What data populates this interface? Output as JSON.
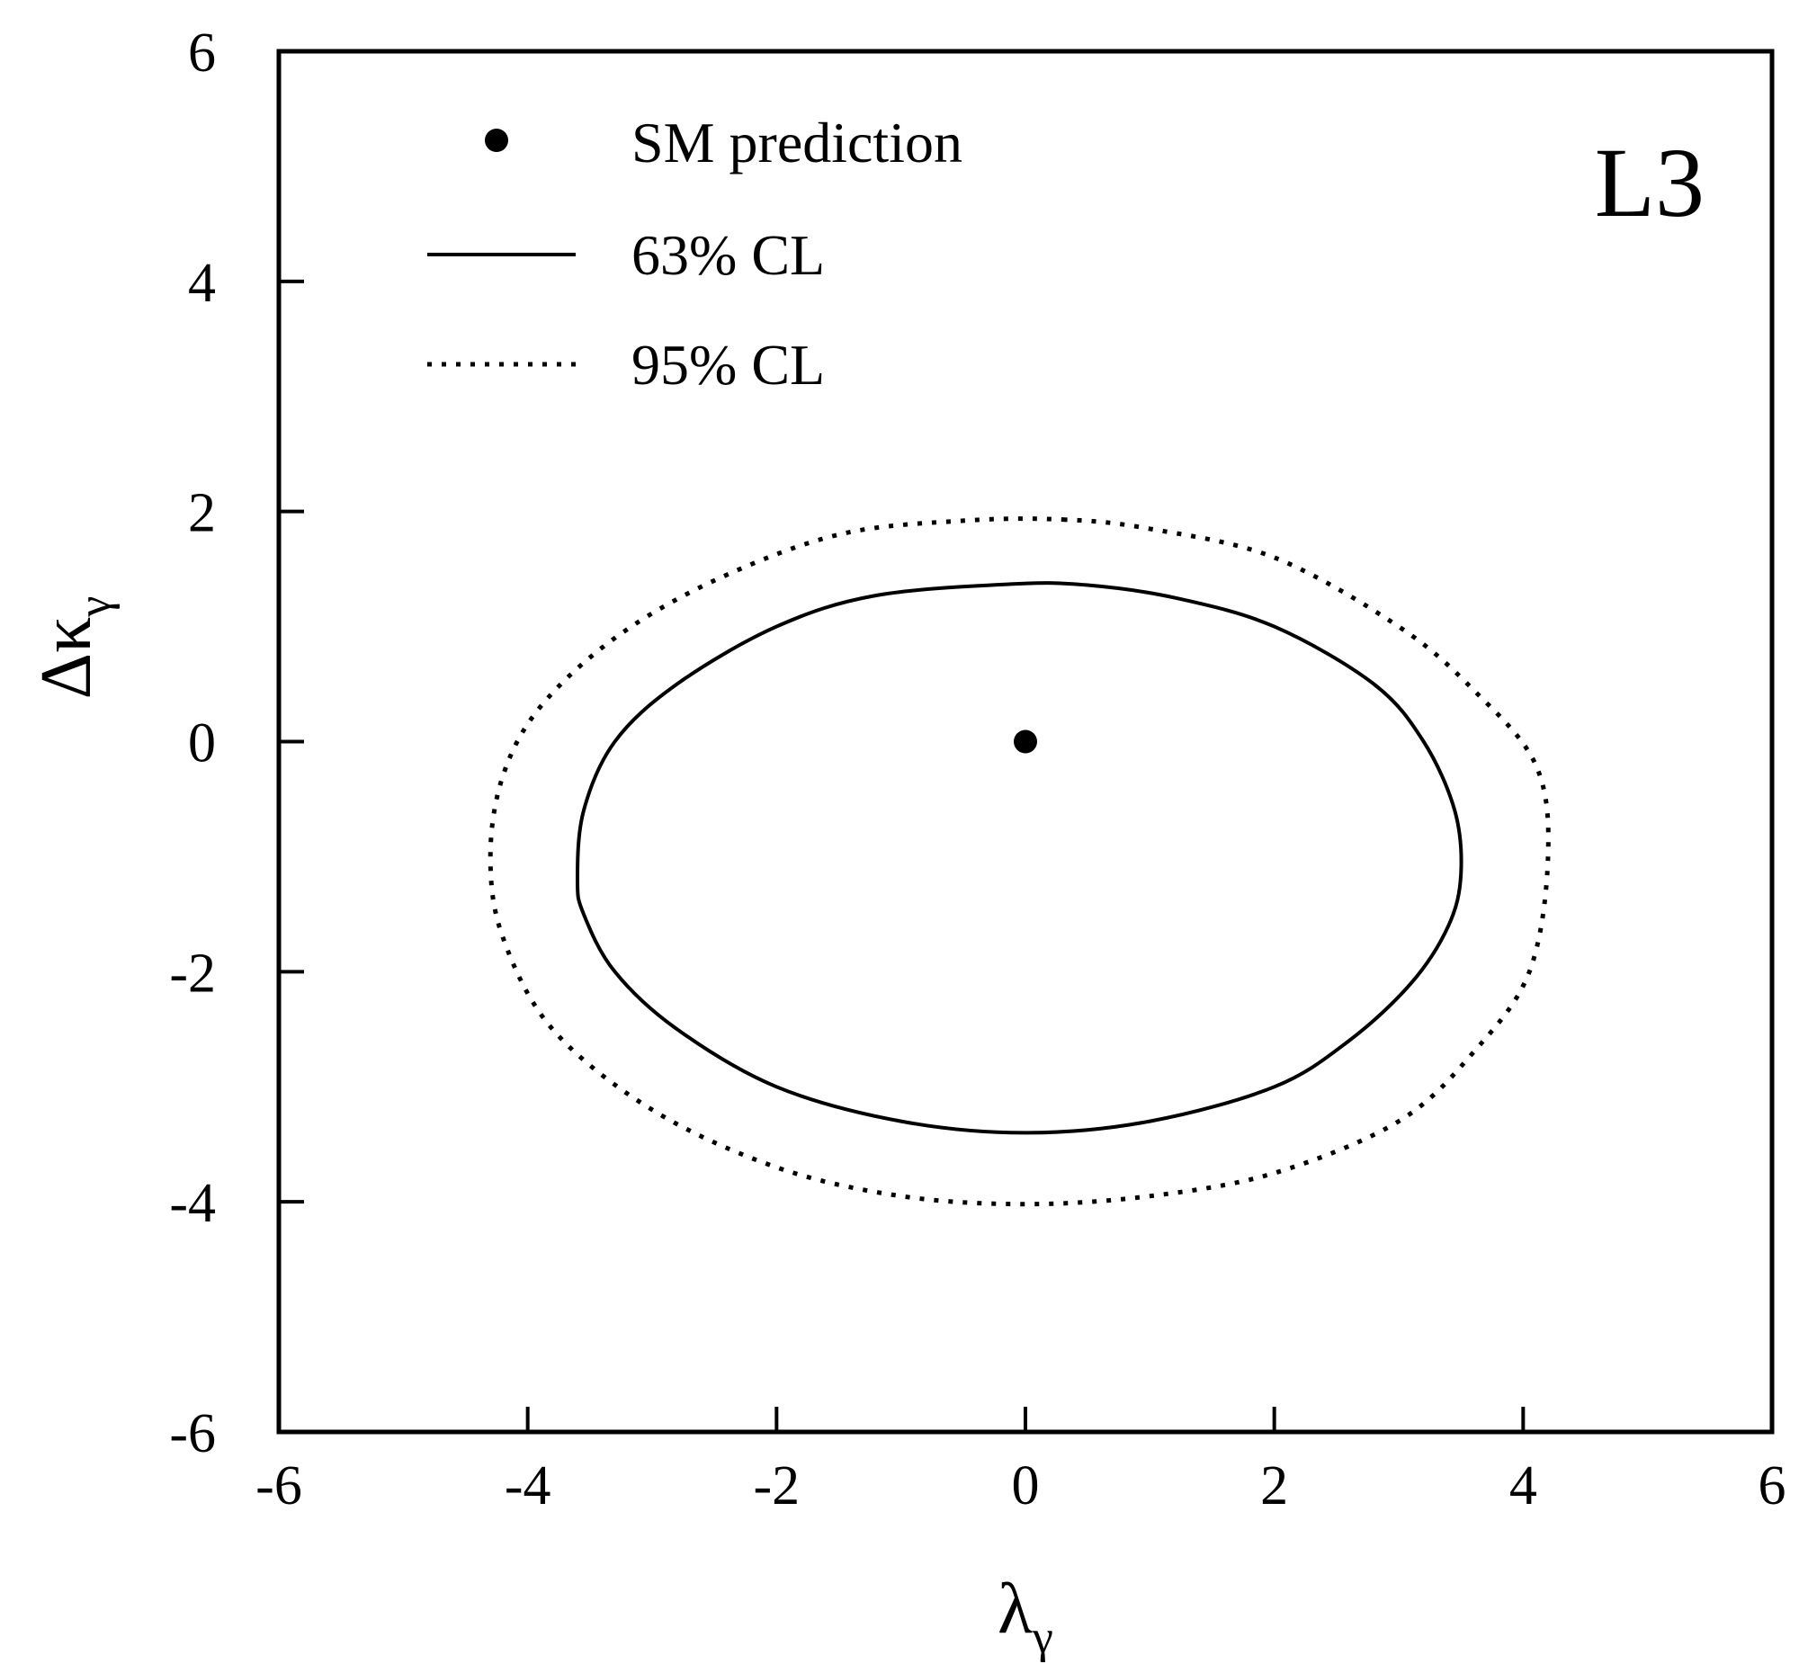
{
  "chart_data": {
    "type": "line",
    "xlabel": {
      "symbol": "λ",
      "subscript": "γ"
    },
    "ylabel": {
      "symbol": "Δκ",
      "subscript": "γ"
    },
    "xlim": [
      -6,
      6
    ],
    "ylim": [
      -6,
      6
    ],
    "xticks": [
      -6,
      -4,
      -2,
      0,
      2,
      4,
      6
    ],
    "yticks": [
      -6,
      -4,
      -2,
      0,
      2,
      4,
      6
    ],
    "xtick_labels": [
      "-6",
      "-4",
      "-2",
      "0",
      "2",
      "4",
      "6"
    ],
    "ytick_labels": [
      "-6",
      "-4",
      "-2",
      "0",
      "2",
      "4",
      "6"
    ],
    "grid": false,
    "legend_position": "top-left",
    "corner_label": "L3",
    "series": [
      {
        "name": "SM prediction",
        "style": "point",
        "points": [
          [
            0.0,
            0.0
          ]
        ]
      },
      {
        "name": "63% CL",
        "style": "solid",
        "closed": true,
        "points": [
          [
            -0.1,
            1.37
          ],
          [
            0.5,
            1.36
          ],
          [
            1.2,
            1.25
          ],
          [
            2.0,
            1.0
          ],
          [
            2.8,
            0.5
          ],
          [
            3.2,
            0.0
          ],
          [
            3.45,
            -0.6
          ],
          [
            3.5,
            -1.15
          ],
          [
            3.4,
            -1.6
          ],
          [
            3.1,
            -2.1
          ],
          [
            2.6,
            -2.6
          ],
          [
            2.0,
            -3.0
          ],
          [
            1.0,
            -3.3
          ],
          [
            0.0,
            -3.4
          ],
          [
            -1.0,
            -3.3
          ],
          [
            -2.0,
            -3.0
          ],
          [
            -2.8,
            -2.5
          ],
          [
            -3.3,
            -2.0
          ],
          [
            -3.55,
            -1.5
          ],
          [
            -3.6,
            -1.2
          ],
          [
            -3.55,
            -0.6
          ],
          [
            -3.3,
            0.0
          ],
          [
            -2.8,
            0.5
          ],
          [
            -2.0,
            1.0
          ],
          [
            -1.2,
            1.27
          ]
        ]
      },
      {
        "name": "95% CL",
        "style": "dotted",
        "closed": true,
        "points": [
          [
            0.3,
            1.93
          ],
          [
            1.0,
            1.85
          ],
          [
            2.0,
            1.6
          ],
          [
            3.0,
            1.0
          ],
          [
            3.6,
            0.45
          ],
          [
            4.1,
            -0.2
          ],
          [
            4.2,
            -1.0
          ],
          [
            4.05,
            -2.0
          ],
          [
            3.6,
            -2.7
          ],
          [
            3.0,
            -3.3
          ],
          [
            2.0,
            -3.75
          ],
          [
            1.0,
            -3.95
          ],
          [
            0.0,
            -4.02
          ],
          [
            -1.0,
            -3.95
          ],
          [
            -2.0,
            -3.7
          ],
          [
            -3.0,
            -3.2
          ],
          [
            -3.8,
            -2.5
          ],
          [
            -4.2,
            -1.7
          ],
          [
            -4.3,
            -1.0
          ],
          [
            -4.2,
            -0.3
          ],
          [
            -3.9,
            0.3
          ],
          [
            -3.3,
            0.9
          ],
          [
            -2.5,
            1.4
          ],
          [
            -1.5,
            1.8
          ],
          [
            -0.5,
            1.92
          ]
        ]
      }
    ]
  }
}
